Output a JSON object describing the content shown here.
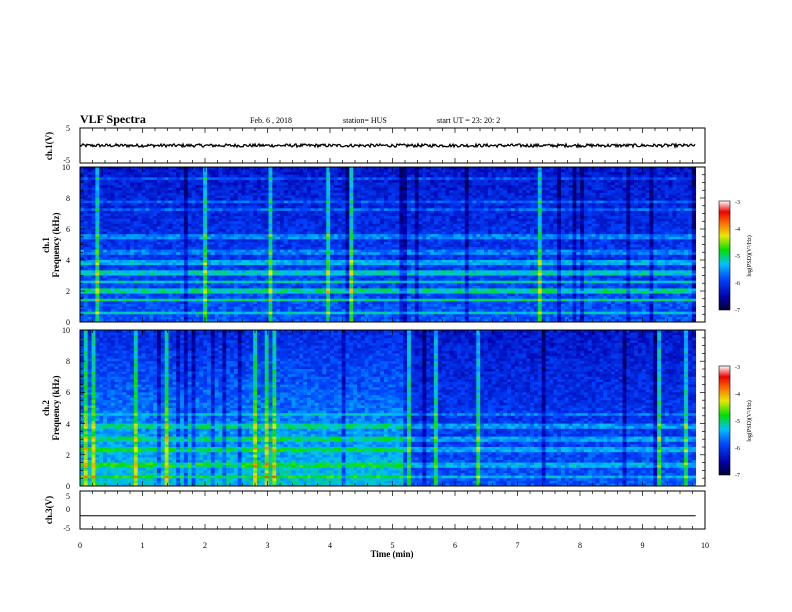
{
  "chart_data": [
    {
      "type": "line",
      "panel": "ch1-waveform",
      "header": {
        "title": "VLF Spectra",
        "date": "Feb. 6  , 2018",
        "station": "station= HUS",
        "start": "start  UT  =   23: 20: 2"
      },
      "ylabel": "ch.1(V)",
      "ylim": [
        -5,
        5
      ],
      "yticks": [
        "5",
        "-5"
      ],
      "xlim": [
        0,
        10
      ],
      "baseline": 0
    },
    {
      "type": "heatmap",
      "panel": "ch1-spectrogram",
      "ylabel_top": "ch.1",
      "ylabel": "Frequency  (kHz)",
      "ylim": [
        0,
        10
      ],
      "yticks": [
        "0",
        "2",
        "4",
        "6",
        "8",
        "10"
      ],
      "xlim": [
        0,
        10
      ],
      "data_extent_min": 9.85,
      "colorbar": {
        "label": "log(PSD)(V²/Hz)",
        "range": [
          -7,
          -3
        ],
        "ticks": [
          "-3",
          "-4",
          "-5",
          "-6",
          "-7"
        ]
      }
    },
    {
      "type": "heatmap",
      "panel": "ch2-spectrogram",
      "ylabel_top": "ch.2",
      "ylabel": "Frequency  (kHz)",
      "ylim": [
        0,
        10
      ],
      "yticks": [
        "0",
        "2",
        "4",
        "6",
        "8",
        "10"
      ],
      "xlim": [
        0,
        10
      ],
      "data_extent_min": 9.85,
      "colorbar": {
        "label": "log(PSD)(V²/Hz)",
        "range": [
          -7,
          -3
        ],
        "ticks": [
          "-3",
          "-4",
          "-5",
          "-6",
          "-7"
        ]
      }
    },
    {
      "type": "line",
      "panel": "ch3-waveform",
      "ylabel": "ch.3(V)",
      "ylim": [
        -5,
        5
      ],
      "yticks": [
        "5",
        "0",
        "-5"
      ],
      "xlim": [
        0,
        10
      ],
      "xlabel": "Time  (min)",
      "xticks": [
        "0",
        "1",
        "2",
        "3",
        "4",
        "5",
        "6",
        "7",
        "8",
        "9",
        "10"
      ],
      "baseline": -1.5
    }
  ]
}
